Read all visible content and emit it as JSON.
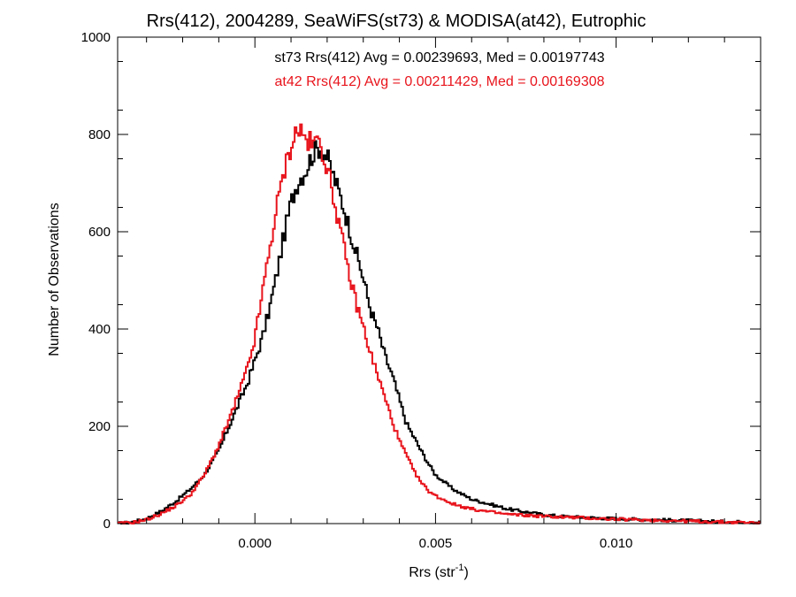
{
  "chart_data": {
    "type": "histogram",
    "title": "Rrs(412), 2004289, SeaWiFS(st73) & MODISA(at42), Eutrophic",
    "xlabel": {
      "base": "Rrs (str",
      "sup": "-1",
      "close": ")"
    },
    "ylabel": "Number of Observations",
    "xlim": [
      -0.0038,
      0.014
    ],
    "ylim": [
      0,
      1000
    ],
    "x_ticks": [
      0.0,
      0.005,
      0.01
    ],
    "x_tick_labels": [
      "0.000",
      "0.005",
      "0.010"
    ],
    "y_ticks": [
      0,
      200,
      400,
      600,
      800,
      1000
    ],
    "y_tick_labels": [
      "0",
      "200",
      "400",
      "600",
      "800",
      "1000"
    ],
    "grid": false,
    "annotations": [
      {
        "text": "st73 Rrs(412) Avg = 0.00239693, Med = 0.00197743",
        "color": "#000000"
      },
      {
        "text": "at42 Rrs(412) Avg = 0.00211429, Med = 0.00169308",
        "color": "#e8141c"
      }
    ],
    "series": [
      {
        "color": "#000000",
        "points": [
          [
            -0.0038,
            0
          ],
          [
            -0.0034,
            3
          ],
          [
            -0.003,
            10
          ],
          [
            -0.0026,
            25
          ],
          [
            -0.0022,
            45
          ],
          [
            -0.0018,
            70
          ],
          [
            -0.0014,
            100
          ],
          [
            -0.001,
            150
          ],
          [
            -0.0006,
            220
          ],
          [
            -0.0002,
            290
          ],
          [
            0.0002,
            380
          ],
          [
            0.0004,
            440
          ],
          [
            0.0006,
            510
          ],
          [
            0.0008,
            590
          ],
          [
            0.001,
            660
          ],
          [
            0.0012,
            705
          ],
          [
            0.0014,
            725
          ],
          [
            0.0016,
            760
          ],
          [
            0.0018,
            775
          ],
          [
            0.002,
            752
          ],
          [
            0.0022,
            710
          ],
          [
            0.0024,
            665
          ],
          [
            0.0026,
            612
          ],
          [
            0.0028,
            558
          ],
          [
            0.003,
            505
          ],
          [
            0.0032,
            440
          ],
          [
            0.0034,
            400
          ],
          [
            0.0036,
            345
          ],
          [
            0.0038,
            305
          ],
          [
            0.004,
            255
          ],
          [
            0.0042,
            205
          ],
          [
            0.0044,
            178
          ],
          [
            0.0046,
            150
          ],
          [
            0.0048,
            124
          ],
          [
            0.005,
            100
          ],
          [
            0.0055,
            70
          ],
          [
            0.006,
            50
          ],
          [
            0.0065,
            40
          ],
          [
            0.007,
            30
          ],
          [
            0.0075,
            24
          ],
          [
            0.008,
            18
          ],
          [
            0.0085,
            15
          ],
          [
            0.009,
            13
          ],
          [
            0.01,
            10
          ],
          [
            0.011,
            8
          ],
          [
            0.012,
            6
          ],
          [
            0.013,
            4
          ],
          [
            0.014,
            3
          ]
        ]
      },
      {
        "color": "#e8141c",
        "points": [
          [
            -0.0038,
            0
          ],
          [
            -0.0034,
            2
          ],
          [
            -0.003,
            8
          ],
          [
            -0.0026,
            20
          ],
          [
            -0.0022,
            36
          ],
          [
            -0.0018,
            58
          ],
          [
            -0.0014,
            100
          ],
          [
            -0.001,
            160
          ],
          [
            -0.0006,
            235
          ],
          [
            -0.0002,
            320
          ],
          [
            0.0,
            380
          ],
          [
            0.0002,
            470
          ],
          [
            0.0004,
            560
          ],
          [
            0.0006,
            648
          ],
          [
            0.0008,
            720
          ],
          [
            0.001,
            778
          ],
          [
            0.0012,
            815
          ],
          [
            0.0014,
            790
          ],
          [
            0.0016,
            778
          ],
          [
            0.0018,
            790
          ],
          [
            0.002,
            730
          ],
          [
            0.0022,
            665
          ],
          [
            0.0024,
            590
          ],
          [
            0.0026,
            515
          ],
          [
            0.0028,
            455
          ],
          [
            0.003,
            405
          ],
          [
            0.0032,
            350
          ],
          [
            0.0034,
            305
          ],
          [
            0.0036,
            258
          ],
          [
            0.0038,
            212
          ],
          [
            0.004,
            170
          ],
          [
            0.0042,
            140
          ],
          [
            0.0044,
            108
          ],
          [
            0.0046,
            85
          ],
          [
            0.0048,
            68
          ],
          [
            0.005,
            57
          ],
          [
            0.0055,
            40
          ],
          [
            0.006,
            30
          ],
          [
            0.0065,
            24
          ],
          [
            0.007,
            19
          ],
          [
            0.008,
            15
          ],
          [
            0.009,
            12
          ],
          [
            0.01,
            9
          ],
          [
            0.011,
            7
          ],
          [
            0.012,
            5
          ],
          [
            0.013,
            3
          ],
          [
            0.014,
            2
          ]
        ]
      }
    ]
  }
}
